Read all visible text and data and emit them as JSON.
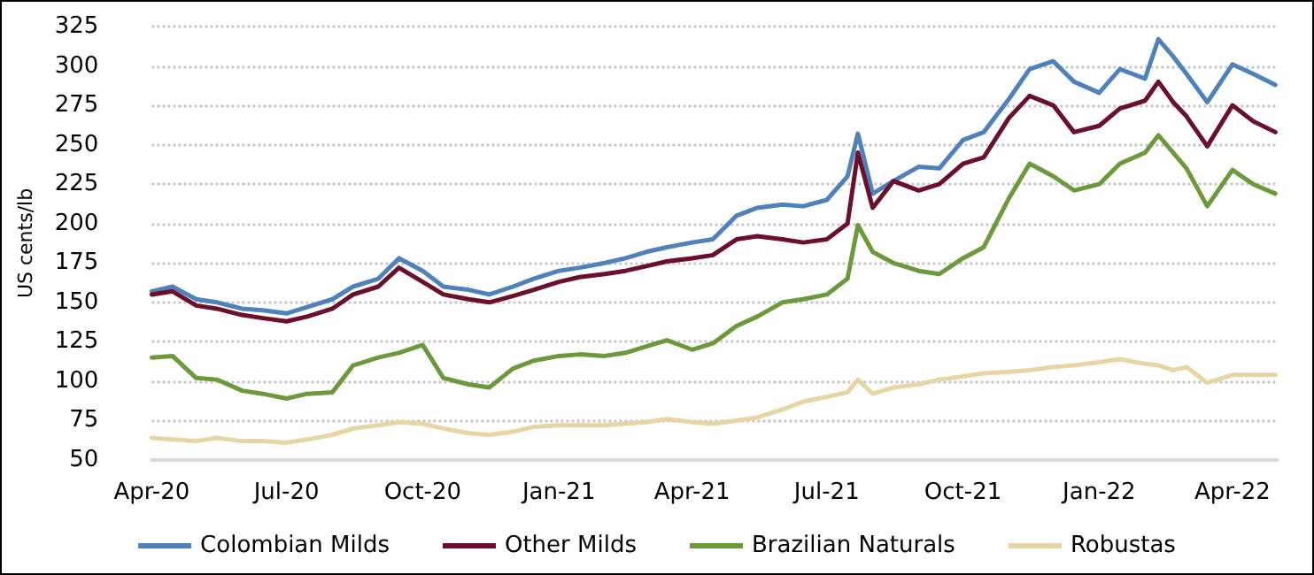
{
  "chart_data": {
    "type": "line",
    "ylabel": "US cents/lb",
    "x": [
      "2020-04-01",
      "2020-04-15",
      "2020-05-01",
      "2020-05-15",
      "2020-06-01",
      "2020-06-15",
      "2020-07-01",
      "2020-07-15",
      "2020-08-01",
      "2020-08-15",
      "2020-09-01",
      "2020-09-15",
      "2020-10-01",
      "2020-10-15",
      "2020-11-01",
      "2020-11-15",
      "2020-12-01",
      "2020-12-15",
      "2021-01-01",
      "2021-01-15",
      "2021-02-01",
      "2021-02-15",
      "2021-03-01",
      "2021-03-15",
      "2021-04-01",
      "2021-04-15",
      "2021-05-01",
      "2021-05-15",
      "2021-06-01",
      "2021-06-15",
      "2021-07-01",
      "2021-07-15",
      "2021-07-22",
      "2021-08-01",
      "2021-08-15",
      "2021-09-01",
      "2021-09-15",
      "2021-10-01",
      "2021-10-15",
      "2021-11-01",
      "2021-11-15",
      "2021-12-01",
      "2021-12-15",
      "2022-01-01",
      "2022-01-15",
      "2022-02-01",
      "2022-02-10",
      "2022-02-20",
      "2022-03-01",
      "2022-03-15",
      "2022-04-01",
      "2022-04-15",
      "2022-04-30"
    ],
    "series": [
      {
        "name": "Colombian Milds",
        "color": "#4f81bd",
        "values": [
          157,
          160,
          152,
          150,
          146,
          145,
          143,
          147,
          152,
          160,
          165,
          178,
          170,
          160,
          158,
          155,
          160,
          165,
          170,
          172,
          175,
          178,
          182,
          185,
          188,
          190,
          205,
          210,
          212,
          211,
          215,
          230,
          257,
          219,
          227,
          236,
          235,
          253,
          258,
          279,
          298,
          303,
          290,
          283,
          298,
          292,
          317,
          306,
          295,
          277,
          301,
          295,
          288
        ]
      },
      {
        "name": "Other Milds",
        "color": "#6b0f2a",
        "values": [
          155,
          157,
          148,
          146,
          142,
          140,
          138,
          141,
          146,
          155,
          160,
          172,
          163,
          155,
          152,
          150,
          154,
          158,
          163,
          166,
          168,
          170,
          173,
          176,
          178,
          180,
          190,
          192,
          190,
          188,
          190,
          200,
          245,
          210,
          227,
          221,
          225,
          238,
          242,
          267,
          281,
          275,
          258,
          262,
          273,
          278,
          290,
          277,
          268,
          249,
          275,
          265,
          258
        ]
      },
      {
        "name": "Brazilian Naturals",
        "color": "#6a9a3a",
        "values": [
          115,
          116,
          102,
          101,
          94,
          92,
          89,
          92,
          93,
          110,
          115,
          118,
          123,
          102,
          98,
          96,
          108,
          113,
          116,
          117,
          116,
          118,
          122,
          126,
          120,
          124,
          135,
          141,
          150,
          152,
          155,
          165,
          199,
          182,
          175,
          170,
          168,
          178,
          185,
          216,
          238,
          230,
          221,
          225,
          238,
          245,
          256,
          245,
          235,
          211,
          234,
          225,
          219
        ]
      },
      {
        "name": "Robustas",
        "color": "#e8d5a4",
        "values": [
          64,
          63,
          62,
          64,
          62,
          62,
          61,
          63,
          66,
          70,
          72,
          74,
          73,
          70,
          67,
          66,
          68,
          71,
          72,
          72,
          72,
          73,
          74,
          76,
          74,
          73,
          75,
          77,
          82,
          87,
          90,
          93,
          101,
          92,
          96,
          98,
          101,
          103,
          105,
          106,
          107,
          109,
          110,
          112,
          114,
          111,
          110,
          107,
          109,
          99,
          104,
          104,
          104
        ]
      }
    ],
    "xlim": [
      "2020-04-01",
      "2022-05-01"
    ],
    "xticks": [
      {
        "value": "2020-04-01",
        "label": "Apr-20"
      },
      {
        "value": "2020-07-01",
        "label": "Jul-20"
      },
      {
        "value": "2020-10-01",
        "label": "Oct-20"
      },
      {
        "value": "2021-01-01",
        "label": "Jan-21"
      },
      {
        "value": "2021-04-01",
        "label": "Apr-21"
      },
      {
        "value": "2021-07-01",
        "label": "Jul-21"
      },
      {
        "value": "2021-10-01",
        "label": "Oct-21"
      },
      {
        "value": "2022-01-01",
        "label": "Jan-22"
      },
      {
        "value": "2022-04-01",
        "label": "Apr-22"
      }
    ],
    "ylim": [
      50,
      325
    ],
    "yticks": [
      50,
      75,
      100,
      125,
      150,
      175,
      200,
      225,
      250,
      275,
      300,
      325
    ],
    "grid": "y",
    "legend": "bottom",
    "marker": "none",
    "line_style": "solid"
  }
}
